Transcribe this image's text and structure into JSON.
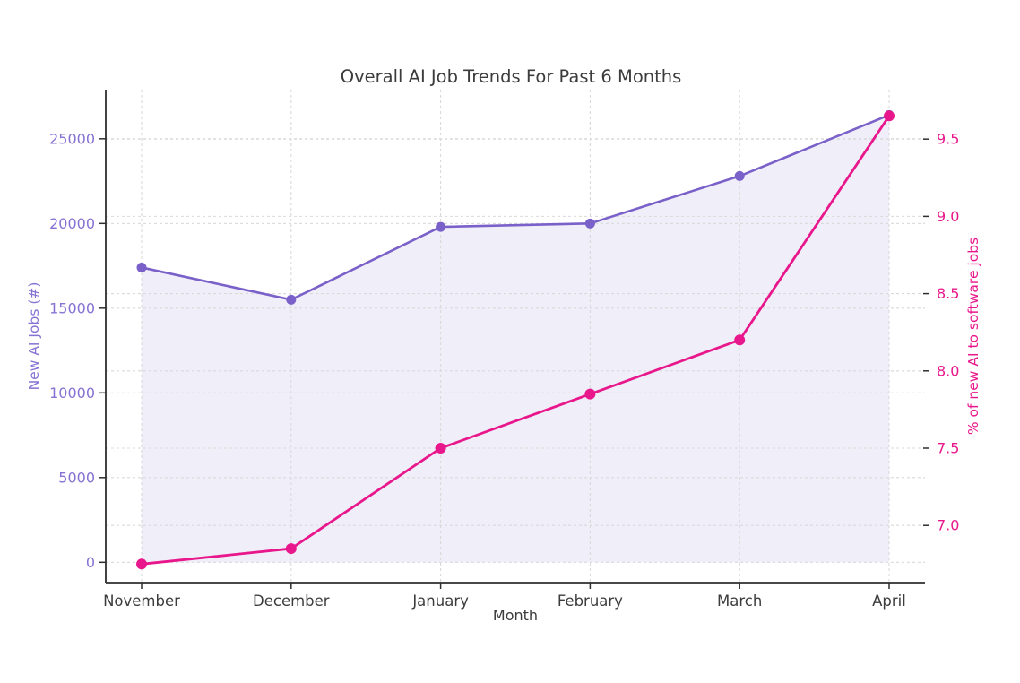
{
  "chart_data": {
    "type": "line",
    "title": "Overall AI Job Trends For Past 6 Months",
    "xlabel": "Month",
    "categories": [
      "November",
      "December",
      "January",
      "February",
      "March",
      "April"
    ],
    "series": [
      {
        "name": "New AI Jobs (#)",
        "axis": "left",
        "color": "#7a60c9",
        "marker_radius": 5.5,
        "line_width": 2.6,
        "area_fill": true,
        "area_fill_color": "rgba(122,96,201,0.11)",
        "area_baseline": 0,
        "values": [
          17400,
          15500,
          19800,
          20000,
          22800,
          26400
        ]
      },
      {
        "name": "% of new AI to software jobs",
        "axis": "right",
        "color": "#e8188c",
        "marker_radius": 6,
        "line_width": 2.8,
        "area_fill": false,
        "values": [
          6.75,
          6.85,
          7.5,
          7.85,
          8.2,
          9.65
        ]
      }
    ],
    "left_axis": {
      "label": "New AI Jobs (#)",
      "ticks": [
        0,
        5000,
        10000,
        15000,
        20000,
        25000
      ],
      "range": [
        -1200,
        27900
      ],
      "tick_color": "#8672d3"
    },
    "right_axis": {
      "label": "% of new AI to software jobs",
      "ticks": [
        7.0,
        7.5,
        8.0,
        8.5,
        9.0,
        9.5
      ],
      "range": [
        6.63,
        9.82
      ],
      "tick_color": "#e8188c"
    },
    "x_axis": {
      "label": "Month",
      "tick_color": "#3c3c3c"
    },
    "grid": {
      "show": true,
      "color": "#d9d9d9",
      "dash": "3 3"
    },
    "legend_position": "none",
    "spine_color": "#2e2e2e",
    "title_color": "#3c3c3c"
  }
}
